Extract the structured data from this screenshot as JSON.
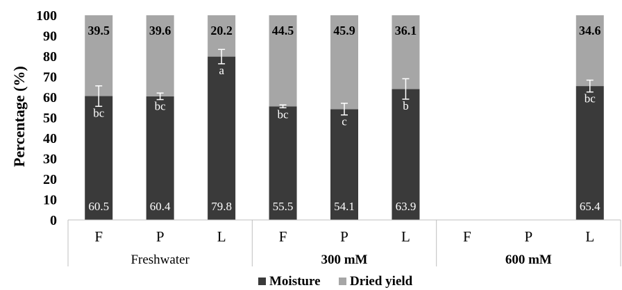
{
  "chart_data": {
    "type": "bar",
    "stacked": true,
    "ylabel": "Percentage (%)",
    "xlabel": "",
    "ylim": [
      0,
      100
    ],
    "yticks": [
      "0",
      "10",
      "20",
      "30",
      "40",
      "50",
      "60",
      "70",
      "80",
      "90",
      "100"
    ],
    "groups": [
      "Freshwater",
      "300 mM",
      "600 mM"
    ],
    "categories": [
      "F",
      "P",
      "L",
      "F",
      "P",
      "L",
      "F",
      "P",
      "L"
    ],
    "series": [
      {
        "name": "Moisture",
        "color": "#3a3a3a",
        "values": [
          60.5,
          60.4,
          79.8,
          55.5,
          54.1,
          63.9,
          null,
          null,
          65.4
        ],
        "labels": [
          "60.5",
          "60.4",
          "79.8",
          "55.5",
          "54.1",
          "63.9",
          "",
          "",
          "65.4"
        ]
      },
      {
        "name": "Dried yield",
        "color": "#a6a6a6",
        "values": [
          39.5,
          39.6,
          20.2,
          44.5,
          45.9,
          36.1,
          null,
          null,
          34.6
        ],
        "labels": [
          "39.5",
          "39.6",
          "20.2",
          "44.5",
          "45.9",
          "36.1",
          "",
          "",
          "34.6"
        ]
      }
    ],
    "error_bars": [
      {
        "low": 55.5,
        "high": 65.5
      },
      {
        "low": 58.8,
        "high": 62.0
      },
      {
        "low": 76.3,
        "high": 83.3
      },
      {
        "low": 54.8,
        "high": 56.2
      },
      {
        "low": 51.3,
        "high": 57.0
      },
      {
        "low": 59.0,
        "high": 69.0
      },
      null,
      null,
      {
        "low": 62.5,
        "high": 68.3
      }
    ],
    "significance": [
      "bc",
      "bc",
      "a",
      "bc",
      "c",
      "b",
      "",
      "",
      "bc"
    ],
    "legend": [
      "Moisture",
      "Dried yield"
    ],
    "legend_position": "bottom",
    "grid": false
  }
}
